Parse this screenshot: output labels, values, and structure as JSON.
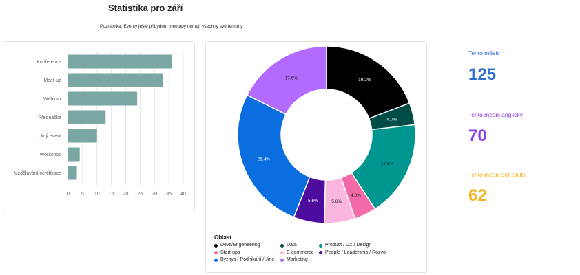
{
  "page": {
    "title": "Statistika pro září",
    "note": "Poznámka: Eventy ještě přibydou, meetupy nemají všechny své termíny"
  },
  "kpis": [
    {
      "label": "Tento měsíc",
      "value": "125",
      "color": "#2f6fd1"
    },
    {
      "label": "Tento měsíc anglicky",
      "value": "70",
      "color": "#8d3de6"
    },
    {
      "label": "Tento měsíc soft skills",
      "value": "62",
      "color": "#f2b31b"
    }
  ],
  "chart_data": [
    {
      "type": "bar",
      "orientation": "horizontal",
      "categories": [
        "Konference",
        "Meet-up",
        "Webinar",
        "Přednáška",
        "Jiný event",
        "Workshop",
        "Vzdělávání/certifikace"
      ],
      "values": [
        36,
        33,
        24,
        13,
        10,
        4,
        3
      ],
      "xlim": [
        0,
        40
      ],
      "xticks": [
        "0",
        "5",
        "10",
        "15",
        "20",
        "25",
        "30",
        "35",
        "40"
      ],
      "grid": true,
      "color": "#7aa6a3"
    },
    {
      "type": "pie",
      "donut": true,
      "legend_title": "Oblast",
      "legend_position": "bottom",
      "slices": [
        {
          "label": "Devs/Engeneering",
          "value": 19.2,
          "display": "19.2%",
          "color": "#000000"
        },
        {
          "label": "Data",
          "value": 4.0,
          "display": "4.0%",
          "color": "#004d47"
        },
        {
          "label": "Product / UX / Design",
          "value": 17.6,
          "display": "17.6%",
          "color": "#009690"
        },
        {
          "label": "Start-ups",
          "value": 4.0,
          "display": "4.0%",
          "color": "#f26aa7"
        },
        {
          "label": "E-commerce",
          "value": 5.6,
          "display": "5.6%",
          "color": "#fab6de"
        },
        {
          "label": "People / Leadership / Rozvoj",
          "value": 5.6,
          "display": "5.6%",
          "color": "#4d0c9e"
        },
        {
          "label": "Byznys / Podnikání / Jiné",
          "value": 26.4,
          "display": "26.4%",
          "color": "#0a6ee1"
        },
        {
          "label": "Marketing",
          "value": 17.6,
          "display": "17.6%",
          "color": "#b36bff"
        }
      ]
    }
  ]
}
